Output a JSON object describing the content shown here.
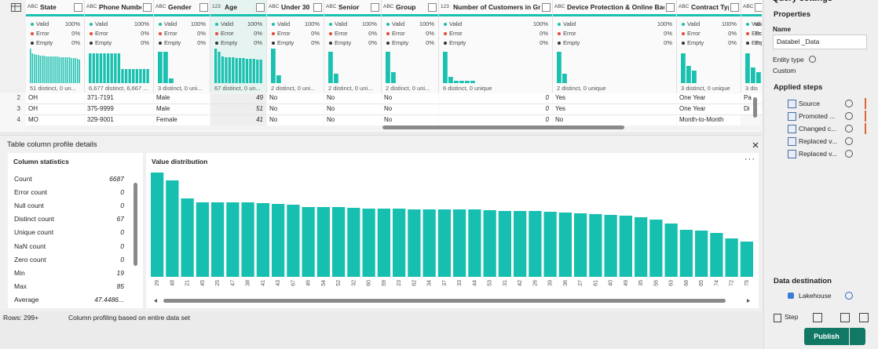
{
  "grid": {
    "quality_labels": [
      "Valid",
      "Error",
      "Empty"
    ],
    "columns": [
      {
        "icon": "ABC",
        "name": "State",
        "quality": [
          "100%",
          "0%",
          "0%"
        ],
        "profile": [
          44,
          38,
          37,
          36,
          36,
          35,
          35,
          35,
          34,
          34,
          34,
          34,
          34,
          34,
          34,
          33,
          33,
          33,
          33,
          33,
          33,
          32,
          32,
          32,
          31,
          30
        ],
        "distinct": "51 distinct, 0 un..."
      },
      {
        "icon": "ABC",
        "name": "Phone Number",
        "quality": [
          "100%",
          "0%",
          "0%"
        ],
        "profile": [
          38,
          38,
          38,
          38,
          38,
          38,
          38,
          38,
          38,
          18,
          18,
          18,
          18,
          18,
          18,
          18,
          18
        ],
        "distinct": "6,677 distinct, 6,667 ..."
      },
      {
        "icon": "ABC",
        "name": "Gender",
        "quality": [
          "100%",
          "0%",
          "0%"
        ],
        "profile": [
          40,
          40,
          6
        ],
        "distinct": "3 distinct, 0 uni..."
      },
      {
        "icon": "123",
        "name": "Age",
        "quality": [
          "100%",
          "0%",
          "0%"
        ],
        "profile": [
          44,
          40,
          34,
          33,
          33,
          33,
          32,
          32,
          32,
          31,
          31,
          31,
          30,
          30
        ],
        "distinct": "67 distinct, 0 un..."
      },
      {
        "icon": "ABC",
        "name": "Under 30",
        "quality": [
          "100%",
          "0%",
          "0%"
        ],
        "profile": [
          44,
          10
        ],
        "distinct": "2 distinct, 0 uni..."
      },
      {
        "icon": "ABC",
        "name": "Senior",
        "quality": [
          "100%",
          "0%",
          "0%"
        ],
        "profile": [
          40,
          12
        ],
        "distinct": "2 distinct, 0 uni..."
      },
      {
        "icon": "ABC",
        "name": "Group",
        "quality": [
          "100%",
          "0%",
          "0%"
        ],
        "profile": [
          40,
          14
        ],
        "distinct": "2 distinct, 0 uni..."
      },
      {
        "icon": "123",
        "name": "Number of Customers in Group",
        "quality": [
          "100%",
          "0%",
          "0%"
        ],
        "profile": [
          40,
          8,
          3,
          3,
          3,
          3
        ],
        "distinct": "6 distinct, 0 unique"
      },
      {
        "icon": "ABC",
        "name": "Device Protection & Online Backup",
        "quality": [
          "100%",
          "0%",
          "0%"
        ],
        "profile": [
          40,
          12
        ],
        "distinct": "2 distinct, 0 unique"
      },
      {
        "icon": "ABC",
        "name": "Contract Type",
        "quality": [
          "100%",
          "0%",
          "0%"
        ],
        "profile": [
          38,
          22,
          16
        ],
        "distinct": "3 distinct, 0 unique"
      },
      {
        "icon": "ABC",
        "name": "Pa",
        "quality": [
          "Va",
          "Er",
          "Er"
        ],
        "profile": [
          38,
          20,
          14
        ],
        "distinct": "3 dis"
      }
    ],
    "rows": [
      {
        "index": "2",
        "cells": [
          "OH",
          "371-7191",
          "Male",
          "49",
          "No",
          "No",
          "No",
          "0",
          "Yes",
          "One Year",
          "Pa"
        ]
      },
      {
        "index": "3",
        "cells": [
          "OH",
          "375-9999",
          "Male",
          "51",
          "No",
          "No",
          "No",
          "0",
          "Yes",
          "One Year",
          "Di"
        ]
      },
      {
        "index": "4",
        "cells": [
          "MO",
          "329-9001",
          "Female",
          "41",
          "No",
          "No",
          "No",
          "0",
          "No",
          "Month-to-Month"
        ]
      }
    ]
  },
  "profile": {
    "title": "Table column profile details",
    "stats_title": "Column statistics",
    "stats": [
      {
        "label": "Count",
        "value": "6687"
      },
      {
        "label": "Error count",
        "value": "0"
      },
      {
        "label": "Null count",
        "value": "0"
      },
      {
        "label": "Distinct count",
        "value": "67"
      },
      {
        "label": "Unique count",
        "value": "0"
      },
      {
        "label": "NaN count",
        "value": "0"
      },
      {
        "label": "Zero count",
        "value": "0"
      },
      {
        "label": "Min",
        "value": "19"
      },
      {
        "label": "Max",
        "value": "85"
      },
      {
        "label": "Average",
        "value": "47.4486..."
      }
    ],
    "distribution": {
      "title": "Value distribution",
      "color": "#17bfb0",
      "categories": [
        "29",
        "48",
        "21",
        "45",
        "25",
        "47",
        "38",
        "41",
        "43",
        "67",
        "46",
        "54",
        "52",
        "32",
        "60",
        "59",
        "23",
        "62",
        "34",
        "37",
        "33",
        "44",
        "53",
        "31",
        "42",
        "26",
        "39",
        "36",
        "27",
        "61",
        "40",
        "49",
        "35",
        "56",
        "63",
        "68",
        "65",
        "74",
        "72",
        "75"
      ],
      "values": [
        133,
        123,
        100,
        95,
        95,
        95,
        95,
        94,
        93,
        92,
        89,
        89,
        89,
        88,
        87,
        87,
        87,
        86,
        86,
        86,
        86,
        86,
        85,
        84,
        84,
        84,
        83,
        82,
        81,
        80,
        79,
        78,
        76,
        73,
        68,
        60,
        59,
        56,
        49,
        45
      ]
    }
  },
  "status": {
    "rows": "Rows: 299+",
    "profiling": "Column profiling based on entire data set"
  },
  "settings": {
    "title": "Query settings",
    "properties": "Properties",
    "name_label": "Name",
    "name_value": "Databel _Data",
    "entity_label": "Entity type",
    "entity_value": "Custom",
    "steps_title": "Applied steps",
    "steps": [
      "Source",
      "Promoted ...",
      "Changed c...",
      "Replaced v...",
      "Replaced v..."
    ],
    "destination_title": "Data destination",
    "destination": "Lakehouse",
    "step_button": "Step",
    "publish": "Publish"
  }
}
